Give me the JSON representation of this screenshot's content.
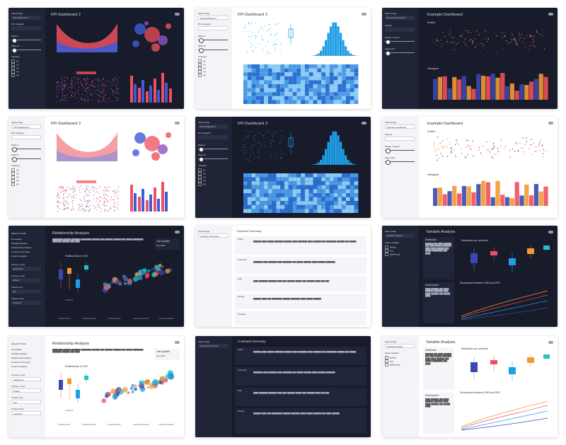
{
  "cards": [
    {
      "id": "kpi2-dark",
      "title": "KPI Dashboard 2",
      "select_label": "Select Page",
      "select_value": "KPI Dashboard 2",
      "labels": [
        "Plot Category",
        "Slider A",
        "Slider B",
        "Category"
      ],
      "checks": [
        "A1",
        "A2",
        "A3",
        "A4",
        "A5"
      ]
    },
    {
      "id": "kpi3-light-top",
      "title": "KPI Dashboard 3",
      "select_label": "Select Page",
      "select_value": "KPI Dashboard 3",
      "labels": [
        "Plot Category",
        "Slider A",
        "Slider B",
        "Category"
      ],
      "checks": [
        "A1",
        "A2",
        "A3",
        "A4",
        "A5"
      ]
    },
    {
      "id": "example-dark",
      "title": "Example Dashboard",
      "select_label": "Select Page",
      "select_value": "Example Dashboard",
      "labels": [
        "Opacity",
        "Range / Length",
        "Flag Letter"
      ],
      "sections": [
        "Scatter",
        "Histogram"
      ],
      "legend": [
        "species",
        "setosa",
        "versicolor",
        "virginica"
      ]
    },
    {
      "id": "kpi3-light",
      "title": "KPI Dashboard 3",
      "select_label": "Select Page",
      "select_value": "KPI Dashboard 3",
      "labels": [
        "Plot Category",
        "Slider A",
        "Slider B",
        "Category"
      ],
      "checks": [
        "A1",
        "A2",
        "A3",
        "A4",
        "A5"
      ]
    },
    {
      "id": "kpi3-dark",
      "title": "KPI Dashboard 3",
      "select_label": "Select Page",
      "select_value": "KPI Dashboard 3",
      "labels": [
        "Plot Category",
        "Slider A",
        "Slider B",
        "Category"
      ],
      "checks": [
        "A1",
        "A2",
        "A3",
        "A4",
        "A5"
      ]
    },
    {
      "id": "example-light",
      "title": "Example Dashboard",
      "select_label": "Select Page",
      "select_value": "Example Dashboard",
      "labels": [
        "Opacity",
        "Range / Length",
        "Flag Letter"
      ],
      "sections": [
        "Scatter",
        "Histogram"
      ],
      "legend": [
        "species",
        "setosa",
        "versicolor",
        "virginica"
      ]
    },
    {
      "id": "rel-dark",
      "title": "Relationship Analysis",
      "nav_header": "SELECT PAGE",
      "nav": [
        "Homepage",
        "Variable Analysis",
        "Relationship Analysis",
        "Continent Summary",
        "Country Analysis"
      ],
      "labels": [
        "Choose x-axis",
        "Choose y-axis",
        "Choose size",
        "Choose color"
      ],
      "values": [
        "gdpPercap",
        "lifeExp",
        "pop",
        "continent"
      ],
      "last_updated_label": "Last updated",
      "last_updated_value": "Jan 2022",
      "chart_title": "Relationship in 2007",
      "legend": [
        "Continent",
        "Asia",
        "Europe",
        "Africa",
        "Americas",
        "Oceania"
      ],
      "footer": [
        "Continent Asia",
        "Continent Europe",
        "Continent Africa",
        "Continent Americas",
        "Continent Oceania"
      ],
      "xlabel": "GDP per capita",
      "ylabel": "Life expectancy"
    },
    {
      "id": "continent-light",
      "title": "Continent Summary",
      "select_label": "Select Page",
      "select_value": "Continent Summary",
      "regions": [
        "Africa",
        "Americas",
        "Asia",
        "Europe",
        "Oceania"
      ]
    },
    {
      "id": "var-dark",
      "title": "Variable Analysis",
      "select_label": "Select Page",
      "select_value": "Variable Analysis",
      "labels": [
        "Select variable"
      ],
      "radios": [
        "lifeExp",
        "pop",
        "gdpPercap"
      ],
      "sections": [
        "Distribution",
        "Development"
      ],
      "chart_titles": [
        "Distribution per continent",
        "Development between 1952 and 2007"
      ]
    },
    {
      "id": "rel-light",
      "title": "Relationship Analysis",
      "nav_header": "SELECT PAGE",
      "nav": [
        "Homepage",
        "Variable Analysis",
        "Relationship Analysis",
        "Continent Summary",
        "Country Analysis"
      ],
      "labels": [
        "Choose x-axis",
        "Choose y-axis",
        "Choose size",
        "Choose color"
      ],
      "values": [
        "gdpPercap",
        "lifeExp",
        "pop",
        "continent"
      ],
      "last_updated_label": "Last updated",
      "last_updated_value": "Jan 2022",
      "chart_title": "Relationship in 2007",
      "legend": [
        "Continent",
        "Asia",
        "Europe",
        "Africa",
        "Americas",
        "Oceania"
      ],
      "footer": [
        "Continent Asia",
        "Continent Europe",
        "Continent Africa",
        "Continent Americas",
        "Continent Oceania"
      ],
      "xlabel": "GDP per capita",
      "ylabel": "Life expectancy"
    },
    {
      "id": "continent-dark",
      "title": "Continent Summary",
      "select_label": "Select Page",
      "select_value": "Continent Summary",
      "regions": [
        "Africa",
        "Americas",
        "Asia",
        "Europe"
      ]
    },
    {
      "id": "var-light",
      "title": "Variable Analysis",
      "select_label": "Select Page",
      "select_value": "Variable Analysis",
      "labels": [
        "Select variable"
      ],
      "radios": [
        "lifeExp",
        "pop",
        "gdpPercap"
      ],
      "sections": [
        "Distribution",
        "Development"
      ],
      "chart_titles": [
        "Distribution per continent",
        "Development between 1952 and 2007"
      ]
    }
  ],
  "colors": {
    "red": "#ef4f5e",
    "blue": "#3f5bd8",
    "purple": "#8a55c2",
    "sky": "#1f9ee6",
    "orange": "#f29a30",
    "navy": "#3a48b0",
    "teal": "#26c0c7"
  }
}
